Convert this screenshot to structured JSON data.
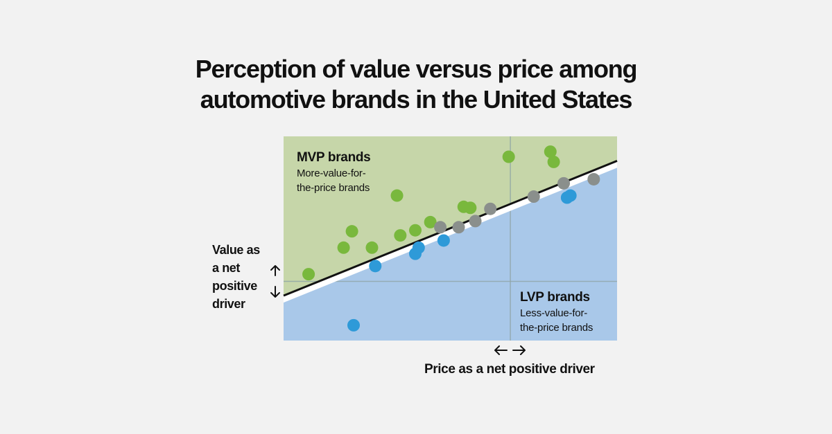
{
  "chart_data": {
    "type": "scatter",
    "title_lines": [
      "Perception of value versus price among",
      "automotive brands in the United States"
    ],
    "ylabel_lines": [
      "Value as",
      "a net",
      "positive",
      "driver"
    ],
    "xlabel": "Price as a net positive driver",
    "xlim": [
      0,
      100
    ],
    "ylim": [
      0,
      100
    ],
    "divider_x": 68,
    "divider_y": 29,
    "trend_line": {
      "x": [
        0,
        100
      ],
      "y": [
        22,
        88
      ]
    },
    "regions": {
      "mvp": {
        "title": "MVP brands",
        "subtitle_lines": [
          "More-value-for-",
          "the-price brands"
        ],
        "color": "#c6d6a9"
      },
      "lvp": {
        "title": "LVP brands",
        "subtitle_lines": [
          "Less-value-for-",
          "the-price brands"
        ],
        "color": "#a9c8e9"
      }
    },
    "series": [
      {
        "color": "#79b83d",
        "points": [
          [
            7.5,
            32.5
          ],
          [
            18,
            45.5
          ],
          [
            20.5,
            53.5
          ],
          [
            26.5,
            45.5
          ],
          [
            34,
            71
          ],
          [
            35,
            51.5
          ],
          [
            39.5,
            54
          ],
          [
            44,
            58
          ],
          [
            54,
            65.5
          ],
          [
            56,
            65
          ],
          [
            67.5,
            90
          ],
          [
            80,
            92.5
          ],
          [
            81,
            87.5
          ]
        ]
      },
      {
        "color": "#2e9ad8",
        "points": [
          [
            21,
            7.5
          ],
          [
            27.5,
            36.5
          ],
          [
            39.5,
            42.5
          ],
          [
            40.5,
            45.5
          ],
          [
            48,
            49
          ],
          [
            85,
            70
          ],
          [
            86,
            71
          ]
        ]
      },
      {
        "color": "#8a8f8c",
        "points": [
          [
            47,
            55.5
          ],
          [
            52.5,
            55.5
          ],
          [
            57.5,
            58.5
          ],
          [
            62,
            64.5
          ],
          [
            75,
            70.5
          ],
          [
            84,
            77
          ],
          [
            93,
            79
          ]
        ]
      }
    ]
  }
}
